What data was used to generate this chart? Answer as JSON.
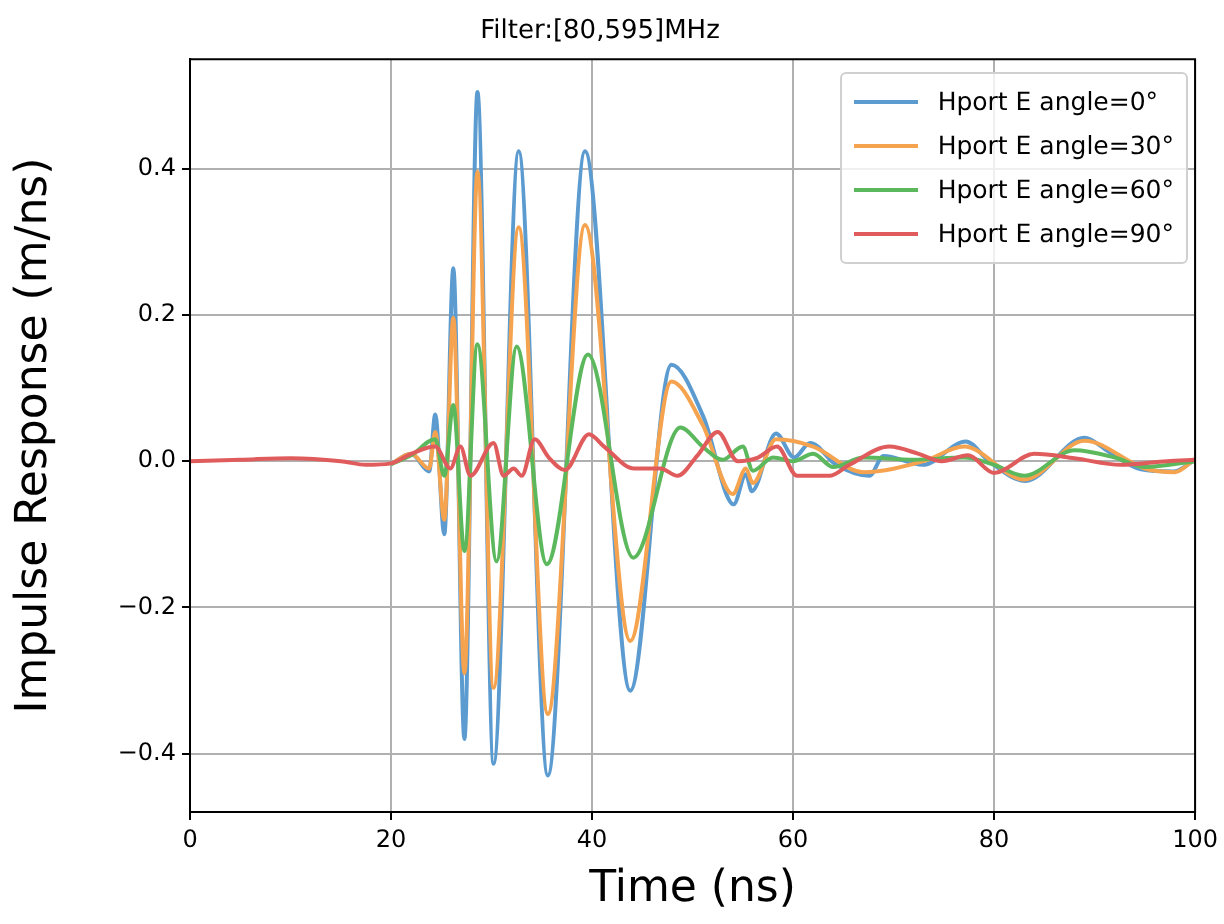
{
  "chart_data": {
    "type": "line",
    "title": "Filter:[80,595]MHz",
    "xlabel": "Time (ns)",
    "ylabel": "Impulse Response (m/ns)",
    "xlim": [
      0,
      100
    ],
    "xticks": [
      0,
      20,
      40,
      60,
      80,
      100
    ],
    "ylim": [
      -0.48,
      0.55
    ],
    "yticks": [
      {
        "value": -0.4,
        "label": "−0.4"
      },
      {
        "value": -0.2,
        "label": "−0.2"
      },
      {
        "value": 0,
        "label": "0.0"
      },
      {
        "value": 0.2,
        "label": "0.2"
      },
      {
        "value": 0.4,
        "label": "0.4"
      }
    ],
    "grid": true,
    "legend": "top right",
    "marker": "none",
    "line_style": "solid",
    "series": [
      {
        "name": "Hport E angle=0°",
        "color": "#5b9bd0",
        "x": [
          20,
          22,
          23.8,
          24.4,
          25.3,
          26.2,
          27.3,
          28.6,
          30.2,
          32.7,
          35.6,
          39.3,
          43.8,
          47.9,
          51.1,
          54.1,
          55.3,
          55.9,
          58.3,
          60.1,
          61.7,
          64.3,
          67.6,
          69,
          72.9,
          77.2,
          79.5,
          83.1,
          89,
          91.3,
          94.6,
          97.9,
          100
        ],
        "values": [
          -0.004,
          0.01,
          -0.014,
          0.064,
          -0.1,
          0.264,
          -0.38,
          0.505,
          -0.414,
          0.424,
          -0.43,
          0.424,
          -0.314,
          0.132,
          0.06,
          -0.059,
          -0.018,
          -0.041,
          0.038,
          0.005,
          0.025,
          -0.005,
          -0.02,
          0.007,
          -0.005,
          0.027,
          0,
          -0.027,
          0.032,
          0.014,
          -0.011,
          -0.014,
          0.002
        ]
      },
      {
        "name": "Hport E angle=30°",
        "color": "#f5a34f",
        "x": [
          20,
          22,
          23.8,
          24.4,
          25.3,
          26.2,
          27.3,
          28.6,
          30.2,
          32.7,
          35.6,
          39.3,
          43.8,
          47.9,
          51,
          54,
          55.3,
          56,
          58.3,
          62,
          67,
          73,
          77,
          83,
          89,
          95,
          98,
          100
        ],
        "values": [
          -0.004,
          0.01,
          -0.01,
          0.04,
          -0.08,
          0.196,
          -0.29,
          0.396,
          -0.31,
          0.32,
          -0.346,
          0.323,
          -0.246,
          0.109,
          0.05,
          -0.045,
          -0.01,
          -0.03,
          0.03,
          0.02,
          -0.015,
          0,
          0.02,
          -0.025,
          0.028,
          -0.01,
          -0.015,
          0.003
        ]
      },
      {
        "name": "Hport E angle=60°",
        "color": "#5cb85c",
        "x": [
          20,
          22,
          24.4,
          25.3,
          26.2,
          27.3,
          28.6,
          30.5,
          32.5,
          35.5,
          39.6,
          44.1,
          48.8,
          51,
          53,
          55,
          56,
          58,
          60,
          62,
          64,
          67,
          72,
          77,
          80,
          83,
          88,
          92,
          95,
          100
        ],
        "values": [
          -0.004,
          0.008,
          0.03,
          -0.02,
          0.077,
          -0.123,
          0.16,
          -0.137,
          0.157,
          -0.141,
          0.146,
          -0.132,
          0.046,
          0.02,
          0.002,
          0.02,
          -0.013,
          0.005,
          0,
          0.01,
          -0.008,
          0.005,
          0.002,
          0.005,
          -0.005,
          -0.02,
          0.015,
          0.005,
          -0.008,
          0
        ]
      },
      {
        "name": "Hport E angle=90°",
        "color": "#e05c5c",
        "x": [
          0,
          5,
          10,
          15,
          17.5,
          20,
          22,
          24.4,
          25.9,
          26.9,
          27.9,
          30.2,
          31.2,
          32.2,
          33,
          34.3,
          35.7,
          37.3,
          39.7,
          41.2,
          44.2,
          46.8,
          48.5,
          50.5,
          52.5,
          54.5,
          56.5,
          58.4,
          60.4,
          63.6,
          65.6,
          69.6,
          72.5,
          74.8,
          77.4,
          80,
          84,
          88,
          92.6,
          97.2,
          100
        ],
        "values": [
          0,
          0.002,
          0.004,
          0,
          -0.005,
          -0.003,
          0.01,
          0.02,
          -0.01,
          0.02,
          -0.02,
          0.025,
          -0.02,
          -0.01,
          -0.02,
          0.03,
          0.005,
          -0.012,
          0.037,
          0.02,
          -0.01,
          -0.01,
          -0.02,
          0.008,
          0.04,
          0,
          0.005,
          0.02,
          -0.02,
          -0.02,
          -0.005,
          0.02,
          0.01,
          0,
          0.008,
          -0.016,
          0.01,
          0.004,
          -0.005,
          0,
          0.002
        ]
      }
    ]
  }
}
